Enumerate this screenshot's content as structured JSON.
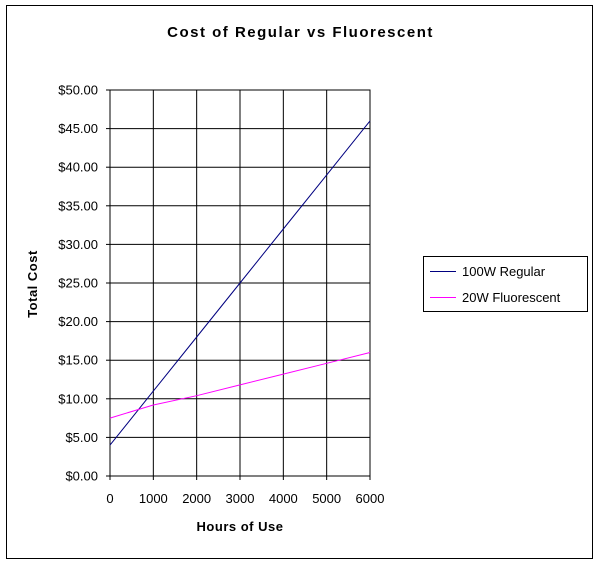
{
  "chart_data": {
    "type": "line",
    "title": "Cost of Regular vs Fluorescent",
    "xlabel": "Hours of Use",
    "ylabel": "Total Cost",
    "x": [
      0,
      1000,
      2000,
      3000,
      4000,
      5000,
      6000
    ],
    "xticks": [
      "0",
      "1000",
      "2000",
      "3000",
      "4000",
      "5000",
      "6000"
    ],
    "xlim": [
      0,
      6000
    ],
    "yticks": [
      "$0.00",
      "$5.00",
      "$10.00",
      "$15.00",
      "$20.00",
      "$25.00",
      "$30.00",
      "$35.00",
      "$40.00",
      "$45.00",
      "$50.00"
    ],
    "ylim": [
      0,
      50
    ],
    "grid": true,
    "legend_position": "right",
    "series": [
      {
        "name": "100W Regular",
        "color": "#000080",
        "values": [
          4.0,
          11.0,
          18.0,
          25.0,
          32.0,
          39.0,
          46.0
        ]
      },
      {
        "name": "20W Fluorescent",
        "color": "#ff00ff",
        "values": [
          7.5,
          9.2,
          10.4,
          11.8,
          13.2,
          14.6,
          16.0
        ]
      }
    ]
  }
}
